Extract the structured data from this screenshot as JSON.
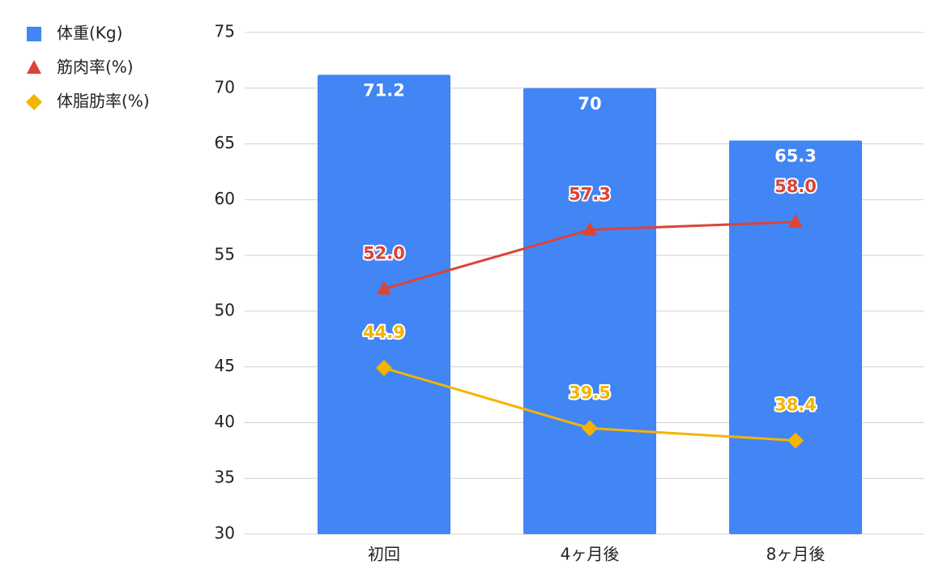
{
  "chart_data": {
    "type": "combo",
    "categories": [
      "初回",
      "4ヶ月後",
      "8ヶ月後"
    ],
    "series": [
      {
        "name": "体重(Kg)",
        "type": "bar",
        "color": "#4285f4",
        "values": [
          71.2,
          70,
          65.3
        ]
      },
      {
        "name": "筋肉率(%)",
        "type": "line",
        "marker": "triangle",
        "color": "#db4437",
        "values": [
          52.0,
          57.3,
          58.0
        ],
        "value_labels": [
          "52.0",
          "57.3",
          "58.0"
        ]
      },
      {
        "name": "体脂肪率(%)",
        "type": "line",
        "marker": "diamond",
        "color": "#f4b400",
        "values": [
          44.9,
          39.5,
          38.4
        ],
        "value_labels": [
          "44.9",
          "39.5",
          "38.4"
        ]
      }
    ],
    "ylim": [
      30,
      75
    ],
    "yticks": [
      30,
      35,
      40,
      45,
      50,
      55,
      60,
      65,
      70,
      75
    ],
    "grid": true,
    "legend": "top-left"
  }
}
